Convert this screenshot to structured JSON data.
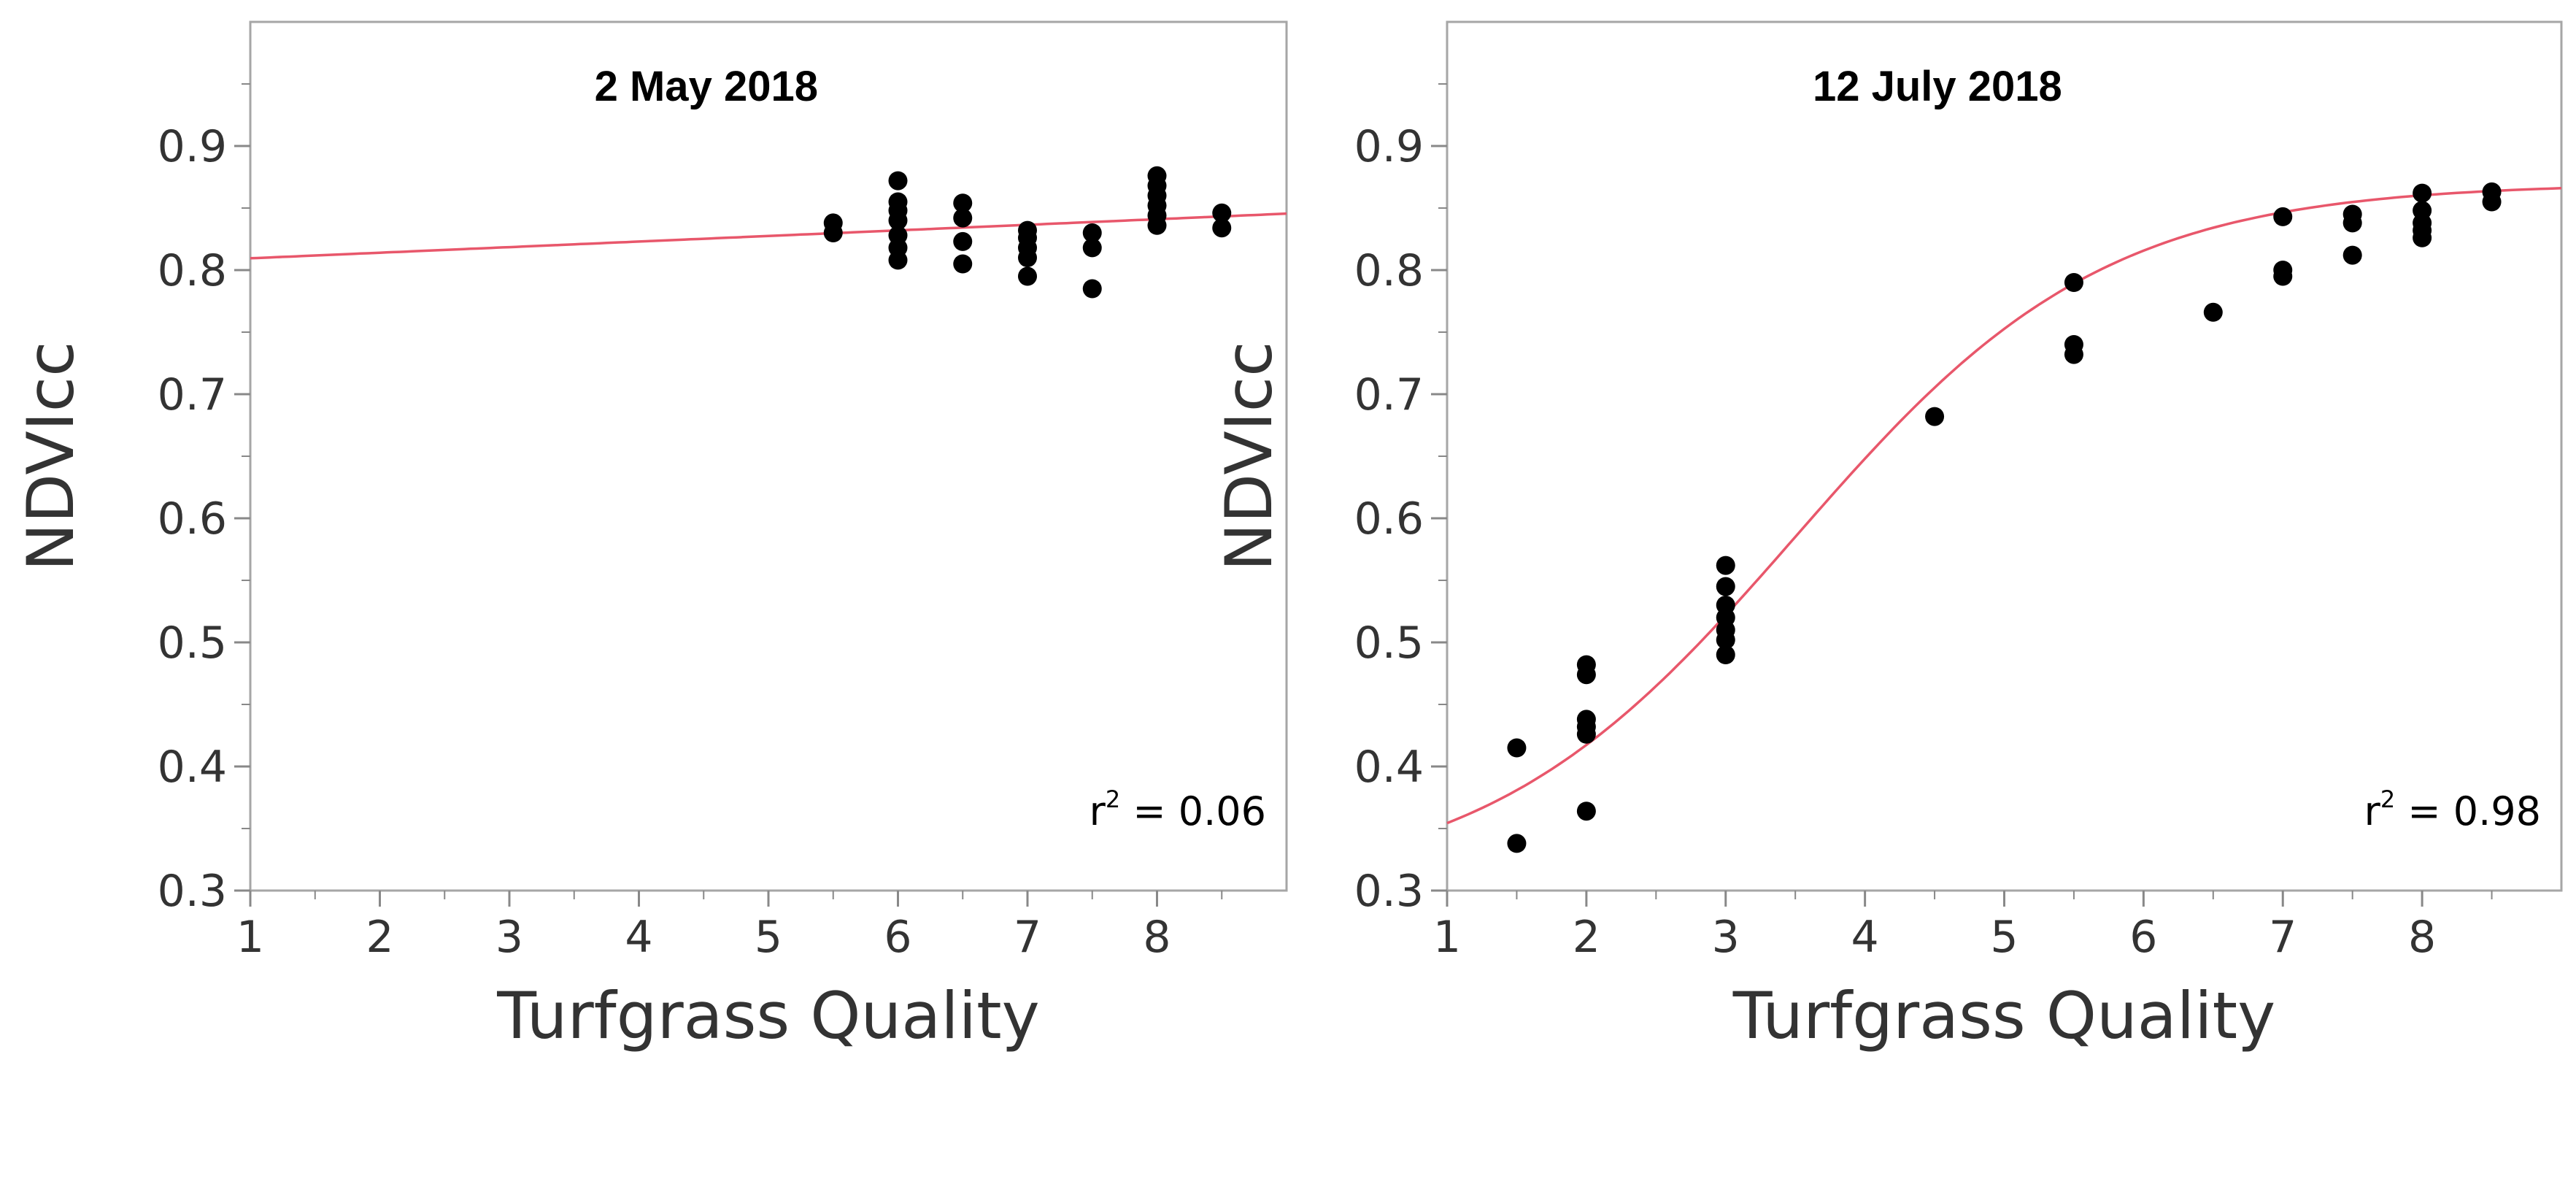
{
  "chart_data": [
    {
      "type": "scatter",
      "title": "2 May 2018",
      "xlabel": "Turfgrass Quality",
      "ylabel": "NDVIcc",
      "xlim": [
        1,
        9
      ],
      "ylim": [
        0.3,
        1.0
      ],
      "xticks": [
        "1",
        "2",
        "3",
        "4",
        "5",
        "6",
        "7",
        "8"
      ],
      "yticks": [
        "0.3",
        "0.4",
        "0.5",
        "0.6",
        "0.7",
        "0.8",
        "0.9"
      ],
      "points": [
        [
          5.5,
          0.838
        ],
        [
          5.5,
          0.83
        ],
        [
          6,
          0.872
        ],
        [
          6,
          0.855
        ],
        [
          6,
          0.848
        ],
        [
          6,
          0.84
        ],
        [
          6,
          0.828
        ],
        [
          6,
          0.818
        ],
        [
          6,
          0.808
        ],
        [
          6.5,
          0.854
        ],
        [
          6.5,
          0.842
        ],
        [
          6.5,
          0.823
        ],
        [
          6.5,
          0.805
        ],
        [
          7,
          0.832
        ],
        [
          7,
          0.826
        ],
        [
          7,
          0.818
        ],
        [
          7,
          0.81
        ],
        [
          7,
          0.795
        ],
        [
          7.5,
          0.83
        ],
        [
          7.5,
          0.818
        ],
        [
          7.5,
          0.785
        ],
        [
          8,
          0.876
        ],
        [
          8,
          0.868
        ],
        [
          8,
          0.86
        ],
        [
          8,
          0.852
        ],
        [
          8,
          0.844
        ],
        [
          8,
          0.836
        ],
        [
          8.5,
          0.846
        ],
        [
          8.5,
          0.834
        ]
      ],
      "fit": {
        "model": "linear",
        "intercept": 0.805,
        "slope": 0.0045,
        "color": "#e8576b"
      },
      "annotation": {
        "r_text": "r",
        "r_sup": "2",
        "value_text": " = 0.06"
      }
    },
    {
      "type": "scatter",
      "title": "12 July 2018",
      "xlabel": "Turfgrass Quality",
      "ylabel": "NDVIcc",
      "xlim": [
        1,
        9
      ],
      "ylim": [
        0.3,
        1.0
      ],
      "xticks": [
        "1",
        "2",
        "3",
        "4",
        "5",
        "6",
        "7",
        "8"
      ],
      "yticks": [
        "0.3",
        "0.4",
        "0.5",
        "0.6",
        "0.7",
        "0.8",
        "0.9"
      ],
      "points": [
        [
          1.5,
          0.415
        ],
        [
          1.5,
          0.338
        ],
        [
          2,
          0.482
        ],
        [
          2,
          0.474
        ],
        [
          2,
          0.438
        ],
        [
          2,
          0.432
        ],
        [
          2,
          0.426
        ],
        [
          2,
          0.364
        ],
        [
          3,
          0.562
        ],
        [
          3,
          0.545
        ],
        [
          3,
          0.53
        ],
        [
          3,
          0.52
        ],
        [
          3,
          0.51
        ],
        [
          3,
          0.502
        ],
        [
          3,
          0.49
        ],
        [
          4.5,
          0.682
        ],
        [
          5.5,
          0.79
        ],
        [
          5.5,
          0.74
        ],
        [
          5.5,
          0.732
        ],
        [
          6.5,
          0.766
        ],
        [
          7,
          0.843
        ],
        [
          7,
          0.8
        ],
        [
          7,
          0.795
        ],
        [
          7.5,
          0.845
        ],
        [
          7.5,
          0.838
        ],
        [
          7.5,
          0.812
        ],
        [
          8,
          0.862
        ],
        [
          8,
          0.848
        ],
        [
          8,
          0.838
        ],
        [
          8,
          0.832
        ],
        [
          8,
          0.826
        ],
        [
          8.5,
          0.863
        ],
        [
          8.5,
          0.855
        ]
      ],
      "fit": {
        "model": "logistic",
        "lower": 0.3,
        "upper": 0.87,
        "x0": 3.5,
        "k": 0.9,
        "color": "#e8576b"
      },
      "annotation": {
        "r_text": "r",
        "r_sup": "2",
        "value_text": " = 0.98"
      }
    }
  ]
}
